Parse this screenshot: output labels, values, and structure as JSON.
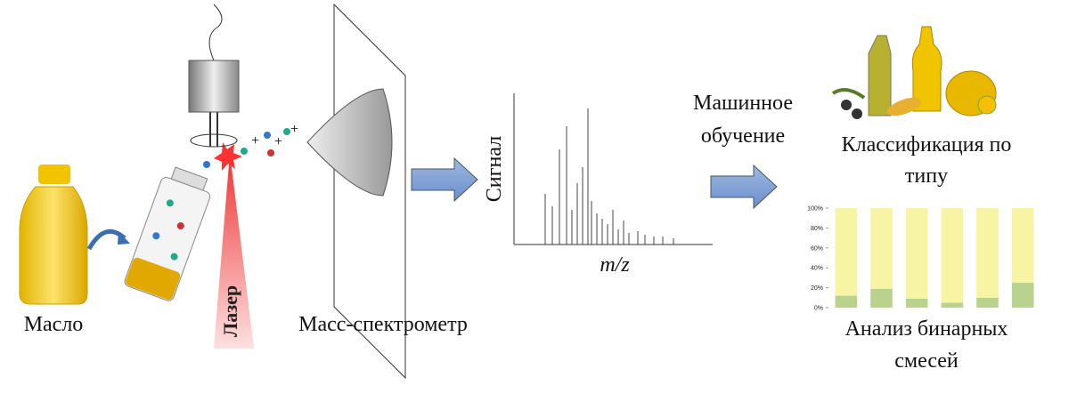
{
  "oil_label": "Масло",
  "laser_label": "Лазер",
  "mass_spec_label": "Масс-спектрометр",
  "spectrum": {
    "y_label": "Сигнал",
    "x_label": "m/z"
  },
  "machine_learning": [
    "Машинное",
    "обучение"
  ],
  "classification": [
    "Классификация по",
    "типу"
  ],
  "mixtures": [
    "Анализ бинарных",
    "смесей"
  ],
  "chart_data": {
    "type": "stacked_bar",
    "categories": [
      null,
      null,
      null,
      null,
      null,
      null
    ],
    "series": [
      {
        "color": "#b9d38f",
        "values": [
          12,
          19,
          9,
          5,
          10,
          25
        ]
      },
      {
        "color": "#f7f5a3",
        "values": [
          88,
          81,
          91,
          95,
          90,
          75
        ]
      }
    ],
    "ylim": [
      0,
      100
    ],
    "yticks": [
      {
        "value": 0,
        "label": "0%"
      },
      {
        "value": 20,
        "label": "20%"
      },
      {
        "value": 40,
        "label": "40%"
      },
      {
        "value": 60,
        "label": "60%"
      },
      {
        "value": 80,
        "label": "80%"
      },
      {
        "value": 100,
        "label": "100%"
      }
    ],
    "grid": false
  }
}
